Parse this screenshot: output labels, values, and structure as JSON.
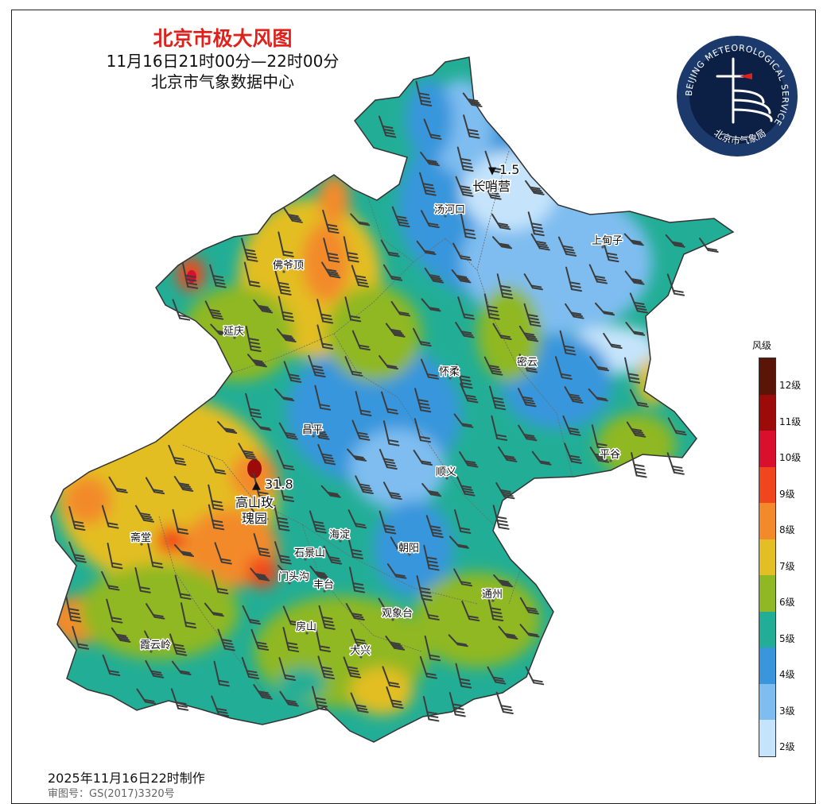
{
  "title": "北京市极大风图",
  "subtitle": "11月16日21时00分—22时00分",
  "agency": "北京市气象数据中心",
  "logo": {
    "ring_text": "BEIJING METEOROLOGICAL SERVICE",
    "name": "北京市气象局",
    "colors": {
      "outer": "#1b3a6b",
      "inner": "#0c1f45",
      "text": "#ffffff"
    }
  },
  "legend": {
    "title": "风级",
    "levels": [
      {
        "label": "12级",
        "color": "#5a1408"
      },
      {
        "label": "11级",
        "color": "#9c0a0a"
      },
      {
        "label": "10级",
        "color": "#d8102e"
      },
      {
        "label": "9级",
        "color": "#f0461e"
      },
      {
        "label": "8级",
        "color": "#f38a2a"
      },
      {
        "label": "7级",
        "color": "#e3be24"
      },
      {
        "label": "6级",
        "color": "#8fb824"
      },
      {
        "label": "5级",
        "color": "#22ae96"
      },
      {
        "label": "4级",
        "color": "#3996dc"
      },
      {
        "label": "3级",
        "color": "#7fbdf0"
      },
      {
        "label": "2级",
        "color": "#c5e4fb"
      }
    ]
  },
  "extremes": {
    "max": {
      "symbol": "▲",
      "value": "31.8",
      "station": "高山玫瑰园"
    },
    "min": {
      "symbol": "▼",
      "value": "1.5",
      "station": "长哨营"
    }
  },
  "districts": [
    "延庆",
    "佛爷顶",
    "汤河口",
    "上甸子",
    "怀柔",
    "密云",
    "昌平",
    "平谷",
    "顺义",
    "斋堂",
    "海淀",
    "朝阳",
    "石景山",
    "门头沟",
    "丰台",
    "通州",
    "观象台",
    "房山",
    "大兴",
    "霞云岭"
  ],
  "footer": {
    "made": "2025年11月16日22时制作",
    "review": "审图号：GS(2017)3320号"
  }
}
